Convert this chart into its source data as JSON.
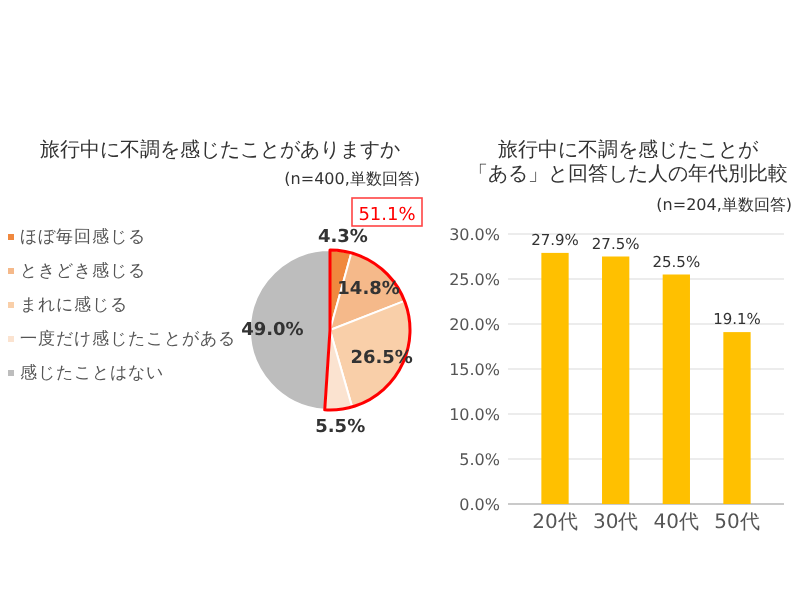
{
  "chart_data": [
    {
      "type": "pie",
      "title": "旅行中に不調を感じたことがありますか",
      "subtitle": "(n=400,単数回答)",
      "categories": [
        "ほぼ毎回感じる",
        "ときどき感じる",
        "まれに感じる",
        "一度だけ感じたことがある",
        "感じたことはない"
      ],
      "values": [
        4.3,
        14.8,
        26.5,
        5.5,
        49.0
      ],
      "colors": [
        "#f0883e",
        "#f5b98a",
        "#f9cfa9",
        "#fbe3d0",
        "#bdbdbd"
      ],
      "value_labels": [
        "4.3%",
        "14.8%",
        "26.5%",
        "5.5%",
        "49.0%"
      ],
      "legend": "left",
      "annotations": [
        "51.1%"
      ]
    },
    {
      "type": "bar",
      "title": "旅行中に不調を感じたことが「ある」と回答した人の年代別比較",
      "subtitle": "(n=204,単数回答)",
      "categories": [
        "20代",
        "30代",
        "40代",
        "50代"
      ],
      "values": [
        27.9,
        27.5,
        25.5,
        19.1
      ],
      "color": "#ffc000",
      "value_labels": [
        "27.9%",
        "27.5%",
        "25.5%",
        "19.1%"
      ],
      "ylim": [
        0,
        30
      ],
      "yticks": [
        {
          "value": 0,
          "label": "0.0%"
        },
        {
          "value": 5,
          "label": "5.0%"
        },
        {
          "value": 10,
          "label": "10.0%"
        },
        {
          "value": 15,
          "label": "15.0%"
        },
        {
          "value": 20,
          "label": "20.0%"
        },
        {
          "value": 25,
          "label": "25.0%"
        },
        {
          "value": 30,
          "label": "30.0%"
        }
      ],
      "grid": "y"
    }
  ]
}
